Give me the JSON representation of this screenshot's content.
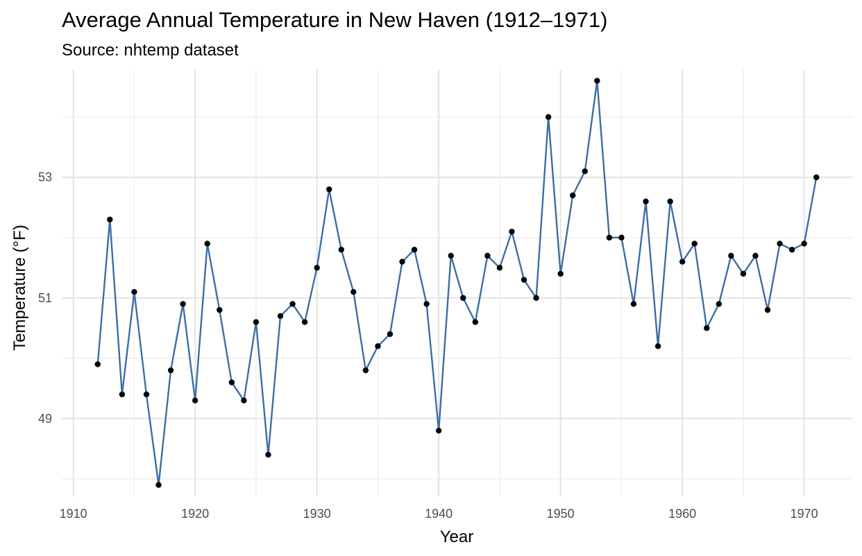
{
  "chart_data": {
    "type": "line",
    "title": "Average Annual Temperature in New Haven (1912–1971)",
    "subtitle": "Source: nhtemp dataset",
    "xlabel": "Year",
    "ylabel": "Temperature (°F)",
    "xlim": [
      1909.05,
      1973.95
    ],
    "ylim": [
      47.71,
      54.79
    ],
    "x_ticks": [
      1910,
      1920,
      1930,
      1940,
      1950,
      1960,
      1970
    ],
    "x_minor_ticks": [
      1915,
      1925,
      1935,
      1945,
      1955,
      1965
    ],
    "y_ticks": [
      49,
      51,
      53
    ],
    "y_minor_ticks": [
      48,
      50,
      52,
      54
    ],
    "grid": true,
    "line_color": "#3b6ea5",
    "point_color": "#000000",
    "series": [
      {
        "x": [
          1912,
          1913,
          1914,
          1915,
          1916,
          1917,
          1918,
          1919,
          1920,
          1921,
          1922,
          1923,
          1924,
          1925,
          1926,
          1927,
          1928,
          1929,
          1930,
          1931,
          1932,
          1933,
          1934,
          1935,
          1936,
          1937,
          1938,
          1939,
          1940,
          1941,
          1942,
          1943,
          1944,
          1945,
          1946,
          1947,
          1948,
          1949,
          1950,
          1951,
          1952,
          1953,
          1954,
          1955,
          1956,
          1957,
          1958,
          1959,
          1960,
          1961,
          1962,
          1963,
          1964,
          1965,
          1966,
          1967,
          1968,
          1969,
          1970,
          1971
        ],
        "values": [
          49.9,
          52.3,
          49.4,
          51.1,
          49.4,
          47.9,
          49.8,
          50.9,
          49.3,
          51.9,
          50.8,
          49.6,
          49.3,
          50.6,
          48.4,
          50.7,
          50.9,
          50.6,
          51.5,
          52.8,
          51.8,
          51.1,
          49.8,
          50.2,
          50.4,
          51.6,
          51.8,
          50.9,
          48.8,
          51.7,
          51.0,
          50.6,
          51.7,
          51.5,
          52.1,
          51.3,
          51.0,
          54.0,
          51.4,
          52.7,
          53.1,
          54.6,
          52.0,
          52.0,
          50.9,
          52.6,
          50.2,
          52.6,
          51.6,
          51.9,
          50.5,
          50.9,
          51.7,
          51.4,
          51.7,
          50.8,
          51.9,
          51.8,
          51.9,
          53.0
        ]
      }
    ]
  }
}
